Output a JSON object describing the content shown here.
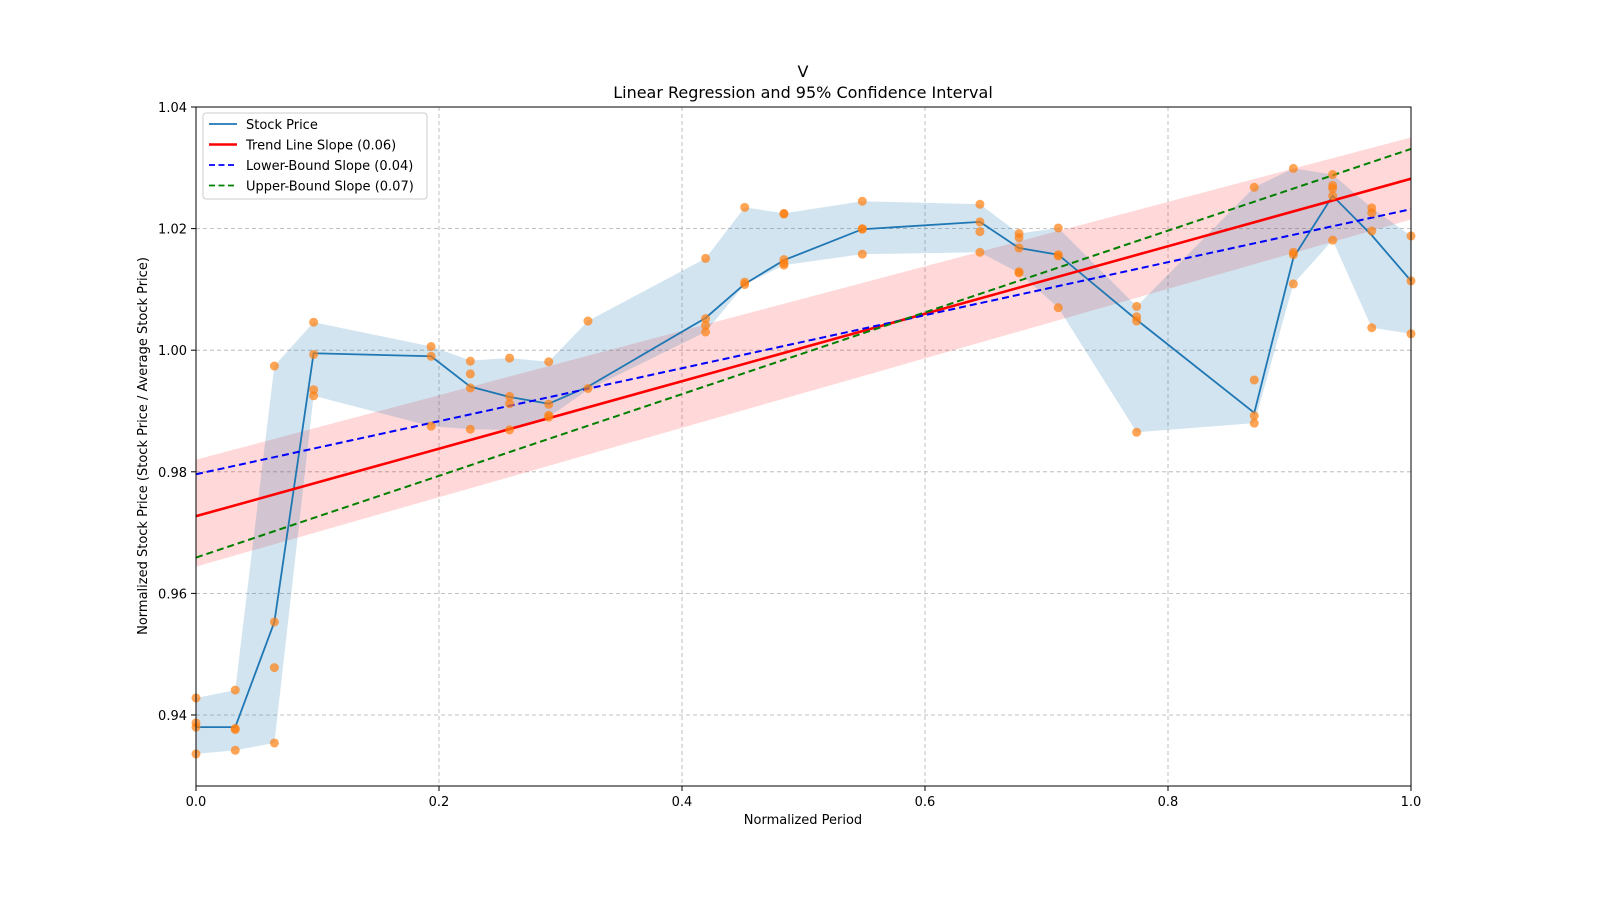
{
  "chart_data": {
    "type": "line",
    "title": "V",
    "subtitle": "Linear Regression and 95% Confidence Interval",
    "xlabel": "Normalized Period",
    "ylabel": "Normalized Stock Price (Stock Price / Average Stock Price)",
    "xlim": [
      0.0,
      1.0
    ],
    "ylim": [
      0.9283,
      1.04
    ],
    "xticks": [
      0.0,
      0.2,
      0.4,
      0.6,
      0.8,
      1.0
    ],
    "xtick_labels": [
      "0.0",
      "0.2",
      "0.4",
      "0.6",
      "0.8",
      "1.0"
    ],
    "yticks": [
      0.94,
      0.96,
      0.98,
      1.0,
      1.02,
      1.04
    ],
    "ytick_labels": [
      "0.94",
      "0.96",
      "0.98",
      "1.00",
      "1.02",
      "1.04"
    ],
    "grid": true,
    "legend_position": "top-left",
    "legend": [
      {
        "label": "Stock Price",
        "color": "#1f77b4",
        "style": "solid"
      },
      {
        "label": "Trend Line Slope (0.06)",
        "color": "#ff0000",
        "style": "solid"
      },
      {
        "label": "Lower-Bound Slope (0.04)",
        "color": "#0000ff",
        "style": "dashed"
      },
      {
        "label": "Upper-Bound Slope (0.07)",
        "color": "#008000",
        "style": "dashed"
      }
    ],
    "stock_price": {
      "x": [
        0.0,
        0.0323,
        0.0645,
        0.0968,
        0.1935,
        0.2258,
        0.2581,
        0.2903,
        0.3226,
        0.4194,
        0.4516,
        0.4839,
        0.5484,
        0.6452,
        0.6774,
        0.7097,
        0.7742,
        0.871,
        0.9032,
        0.9355,
        0.9677,
        1.0
      ],
      "y": [
        0.938,
        0.938,
        0.9553,
        0.9995,
        0.999,
        0.994,
        0.9923,
        0.9912,
        0.994,
        1.0053,
        1.0109,
        1.0148,
        1.0199,
        1.0211,
        1.0168,
        1.0157,
        1.005,
        0.9897,
        1.0152,
        1.0254,
        1.0189,
        1.0114
      ],
      "band_upper": [
        0.9428,
        0.9441,
        0.9974,
        1.0046,
        1.0006,
        0.9983,
        0.9987,
        0.9981,
        1.0048,
        1.0151,
        1.0235,
        1.0225,
        1.0245,
        1.024,
        1.0192,
        1.0201,
        1.0072,
        1.0268,
        1.0299,
        1.0289,
        1.0234,
        1.0188
      ],
      "band_lower": [
        0.9336,
        0.9342,
        0.9354,
        0.9925,
        0.9875,
        0.987,
        0.9869,
        0.989,
        0.9935,
        1.003,
        1.0108,
        1.014,
        1.0158,
        1.0161,
        1.0127,
        1.007,
        0.9865,
        0.988,
        1.0109,
        1.0181,
        1.0037,
        1.0027
      ],
      "color": "#1f77b4",
      "band_color": "#1f77b4"
    },
    "scatter": {
      "color": "#ff7f0e",
      "points": [
        [
          0.0,
          0.9428
        ],
        [
          0.0,
          0.9387
        ],
        [
          0.0,
          0.938
        ],
        [
          0.0,
          0.9336
        ],
        [
          0.0323,
          0.9441
        ],
        [
          0.0323,
          0.9378
        ],
        [
          0.0323,
          0.9376
        ],
        [
          0.0323,
          0.9342
        ],
        [
          0.0645,
          0.9974
        ],
        [
          0.0645,
          0.9553
        ],
        [
          0.0645,
          0.9478
        ],
        [
          0.0645,
          0.9354
        ],
        [
          0.0968,
          1.0046
        ],
        [
          0.0968,
          0.9993
        ],
        [
          0.0968,
          0.9935
        ],
        [
          0.0968,
          0.9925
        ],
        [
          0.1935,
          1.0006
        ],
        [
          0.1935,
          0.999
        ],
        [
          0.1935,
          0.9875
        ],
        [
          0.2258,
          0.9982
        ],
        [
          0.2258,
          0.9961
        ],
        [
          0.2258,
          0.9938
        ],
        [
          0.2258,
          0.987
        ],
        [
          0.2581,
          0.9987
        ],
        [
          0.2581,
          0.9924
        ],
        [
          0.2581,
          0.9912
        ],
        [
          0.2581,
          0.9869
        ],
        [
          0.2903,
          0.9981
        ],
        [
          0.2903,
          0.9911
        ],
        [
          0.2903,
          0.9893
        ],
        [
          0.2903,
          0.989
        ],
        [
          0.3226,
          1.0048
        ],
        [
          0.3226,
          0.9937
        ],
        [
          0.4194,
          1.0151
        ],
        [
          0.4194,
          1.0052
        ],
        [
          0.4194,
          1.0041
        ],
        [
          0.4194,
          1.003
        ],
        [
          0.4516,
          1.0235
        ],
        [
          0.4516,
          1.0112
        ],
        [
          0.4516,
          1.0108
        ],
        [
          0.4839,
          1.0225
        ],
        [
          0.4839,
          1.0224
        ],
        [
          0.4839,
          1.0149
        ],
        [
          0.4839,
          1.0143
        ],
        [
          0.4839,
          1.014
        ],
        [
          0.5484,
          1.0245
        ],
        [
          0.5484,
          1.02
        ],
        [
          0.5484,
          1.0199
        ],
        [
          0.5484,
          1.0158
        ],
        [
          0.6452,
          1.024
        ],
        [
          0.6452,
          1.0211
        ],
        [
          0.6452,
          1.0195
        ],
        [
          0.6452,
          1.0161
        ],
        [
          0.6774,
          1.0192
        ],
        [
          0.6774,
          1.0185
        ],
        [
          0.6774,
          1.0168
        ],
        [
          0.6774,
          1.0129
        ],
        [
          0.6774,
          1.0127
        ],
        [
          0.7097,
          1.0201
        ],
        [
          0.7097,
          1.0157
        ],
        [
          0.7097,
          1.0155
        ],
        [
          0.7097,
          1.007
        ],
        [
          0.7742,
          1.0072
        ],
        [
          0.7742,
          1.0055
        ],
        [
          0.7742,
          1.0048
        ],
        [
          0.7742,
          0.9865
        ],
        [
          0.871,
          1.0268
        ],
        [
          0.871,
          0.9951
        ],
        [
          0.871,
          0.9892
        ],
        [
          0.871,
          0.988
        ],
        [
          0.9032,
          1.0299
        ],
        [
          0.9032,
          1.0161
        ],
        [
          0.9032,
          1.0157
        ],
        [
          0.9032,
          1.0109
        ],
        [
          0.9355,
          1.0289
        ],
        [
          0.9355,
          1.0271
        ],
        [
          0.9355,
          1.0266
        ],
        [
          0.9355,
          1.0254
        ],
        [
          0.9355,
          1.0181
        ],
        [
          0.9677,
          1.0234
        ],
        [
          0.9677,
          1.0226
        ],
        [
          0.9677,
          1.0196
        ],
        [
          0.9677,
          1.0037
        ],
        [
          1.0,
          1.0188
        ],
        [
          1.0,
          1.0114
        ],
        [
          1.0,
          1.0027
        ]
      ]
    },
    "trend_line": {
      "intercept": 0.9727,
      "end": 1.0282,
      "slope": 0.06,
      "color": "#ff0000",
      "ci_lower_start": 0.9644,
      "ci_upper_start": 0.982,
      "ci_lower_end": 1.0215,
      "ci_upper_end": 1.035
    },
    "lower_bound_line": {
      "intercept": 0.9796,
      "end": 1.0232,
      "slope": 0.04,
      "color": "#0000ff"
    },
    "upper_bound_line": {
      "intercept": 0.9659,
      "end": 1.0331,
      "slope": 0.07,
      "color": "#008000"
    }
  }
}
